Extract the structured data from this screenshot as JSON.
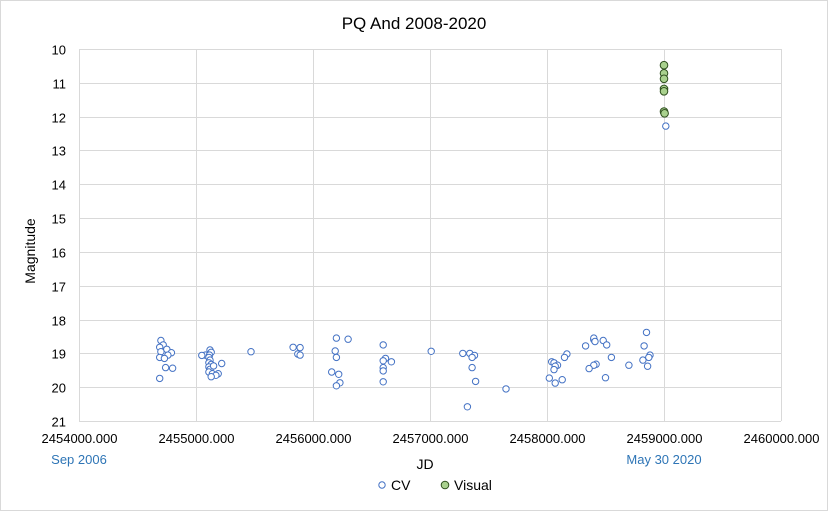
{
  "chart_data": {
    "type": "scatter",
    "title": "PQ And 2008-2020",
    "xlabel": "JD",
    "ylabel": "Magnitude",
    "xlim": [
      2454000,
      2460000
    ],
    "ylim": [
      10,
      21
    ],
    "y_inverted": true,
    "x_ticks": [
      2454000,
      2455000,
      2456000,
      2457000,
      2458000,
      2459000,
      2460000
    ],
    "x_tick_labels": [
      "2454000.000",
      "2455000.000",
      "2456000.000",
      "2457000.000",
      "2458000.000",
      "2459000.000",
      "2460000.000"
    ],
    "y_ticks": [
      10,
      11,
      12,
      13,
      14,
      15,
      16,
      17,
      18,
      19,
      20,
      21
    ],
    "y_tick_labels": [
      "10",
      "11",
      "12",
      "13",
      "14",
      "15",
      "16",
      "17",
      "18",
      "19",
      "20",
      "21"
    ],
    "grid": {
      "horizontal": true,
      "vertical": true
    },
    "legend_position": "bottom",
    "annotations": [
      {
        "text": "Sep 2006",
        "x": 2454000,
        "color": "#2e75b6"
      },
      {
        "text": "May 30 2020",
        "x": 2459000,
        "color": "#2e75b6"
      }
    ],
    "series": [
      {
        "name": "CV",
        "marker": "open-circle",
        "color": "#4472c4",
        "points": [
          [
            2454700,
            18.62
          ],
          [
            2454720,
            18.75
          ],
          [
            2454690,
            18.82
          ],
          [
            2454750,
            18.88
          ],
          [
            2454700,
            18.95
          ],
          [
            2454790,
            18.98
          ],
          [
            2454760,
            19.05
          ],
          [
            2454690,
            19.12
          ],
          [
            2454730,
            19.15
          ],
          [
            2454740,
            19.42
          ],
          [
            2454800,
            19.44
          ],
          [
            2454690,
            19.74
          ],
          [
            2455080,
            19.05
          ],
          [
            2455050,
            19.06
          ],
          [
            2455120,
            18.9
          ],
          [
            2455130,
            18.97
          ],
          [
            2455115,
            19.05
          ],
          [
            2455110,
            19.12
          ],
          [
            2455120,
            19.2
          ],
          [
            2455110,
            19.28
          ],
          [
            2455130,
            19.33
          ],
          [
            2455110,
            19.4
          ],
          [
            2455120,
            19.47
          ],
          [
            2455150,
            19.37
          ],
          [
            2455110,
            19.55
          ],
          [
            2455140,
            19.6
          ],
          [
            2455190,
            19.6
          ],
          [
            2455170,
            19.65
          ],
          [
            2455130,
            19.69
          ],
          [
            2455220,
            19.3
          ],
          [
            2455470,
            18.95
          ],
          [
            2455830,
            18.82
          ],
          [
            2455890,
            18.83
          ],
          [
            2455870,
            19.02
          ],
          [
            2455890,
            19.05
          ],
          [
            2456200,
            18.55
          ],
          [
            2456300,
            18.58
          ],
          [
            2456190,
            18.93
          ],
          [
            2456200,
            19.12
          ],
          [
            2456160,
            19.55
          ],
          [
            2456220,
            19.62
          ],
          [
            2456230,
            19.87
          ],
          [
            2456200,
            19.96
          ],
          [
            2456600,
            18.75
          ],
          [
            2456620,
            19.15
          ],
          [
            2456600,
            19.22
          ],
          [
            2456670,
            19.25
          ],
          [
            2456600,
            19.42
          ],
          [
            2456600,
            19.52
          ],
          [
            2456600,
            19.84
          ],
          [
            2457010,
            18.94
          ],
          [
            2457280,
            19.0
          ],
          [
            2457340,
            19.0
          ],
          [
            2457380,
            19.06
          ],
          [
            2457360,
            19.12
          ],
          [
            2457360,
            19.42
          ],
          [
            2457390,
            19.83
          ],
          [
            2457320,
            20.58
          ],
          [
            2457650,
            20.05
          ],
          [
            2458040,
            19.25
          ],
          [
            2458060,
            19.28
          ],
          [
            2458090,
            19.35
          ],
          [
            2458070,
            19.38
          ],
          [
            2458060,
            19.48
          ],
          [
            2458020,
            19.73
          ],
          [
            2458130,
            19.78
          ],
          [
            2458070,
            19.88
          ],
          [
            2458170,
            19.02
          ],
          [
            2458150,
            19.12
          ],
          [
            2458330,
            18.78
          ],
          [
            2458400,
            18.6
          ],
          [
            2458400,
            18.55
          ],
          [
            2458410,
            18.65
          ],
          [
            2458420,
            19.32
          ],
          [
            2458400,
            19.35
          ],
          [
            2458360,
            19.45
          ],
          [
            2458480,
            18.62
          ],
          [
            2458510,
            18.75
          ],
          [
            2458550,
            19.12
          ],
          [
            2458500,
            19.72
          ],
          [
            2458700,
            19.35
          ],
          [
            2458850,
            18.38
          ],
          [
            2458830,
            18.78
          ],
          [
            2458880,
            19.05
          ],
          [
            2458870,
            19.12
          ],
          [
            2458820,
            19.2
          ],
          [
            2458860,
            19.38
          ],
          [
            2459015,
            12.28
          ]
        ]
      },
      {
        "name": "Visual",
        "marker": "filled-circle",
        "color": "#70ad47",
        "fill": "#a9d18e",
        "points": [
          [
            2459000,
            10.48
          ],
          [
            2459000,
            10.72
          ],
          [
            2459000,
            10.88
          ],
          [
            2459000,
            11.18
          ],
          [
            2459000,
            11.25
          ],
          [
            2459000,
            11.85
          ],
          [
            2459005,
            11.9
          ]
        ]
      }
    ]
  }
}
